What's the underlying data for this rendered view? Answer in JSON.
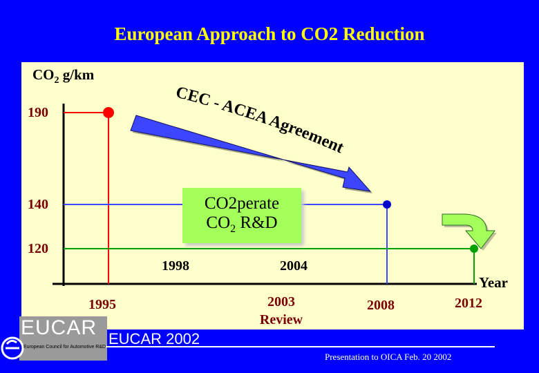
{
  "title": "European Approach to CO2 Reduction",
  "unit": {
    "main": "CO",
    "sub": "2",
    "rest": " g/km"
  },
  "y_levels": [
    {
      "label": "190",
      "value": 190
    },
    {
      "label": "140",
      "value": 140
    },
    {
      "label": "120",
      "value": 120
    }
  ],
  "milestones_above_axis": [
    "1998",
    "2004"
  ],
  "milestones_below_axis": {
    "y1995": "1995",
    "review": [
      "2003",
      "Review"
    ],
    "y2008": "2008",
    "y2012": "2012"
  },
  "axis_label": "Year",
  "agreement_label": "CEC - ACEA Agreement",
  "rd_box": {
    "line1": "CO2perate",
    "line2_main": "CO",
    "line2_sub": "2",
    "line2_rest": " R&D"
  },
  "logo": {
    "name": "EUCAR",
    "subtitle": "European Council for Automotive R&D",
    "year_label": "EUCAR 2002"
  },
  "footer": "Presentation to OICA Feb. 20 2002",
  "colors": {
    "background": "#0000ff",
    "panel": "#ffffcc",
    "title": "#ffff00",
    "arrow": "#3c46ff",
    "rd_box": "#a3ff5a",
    "label": "#7a0000"
  }
}
